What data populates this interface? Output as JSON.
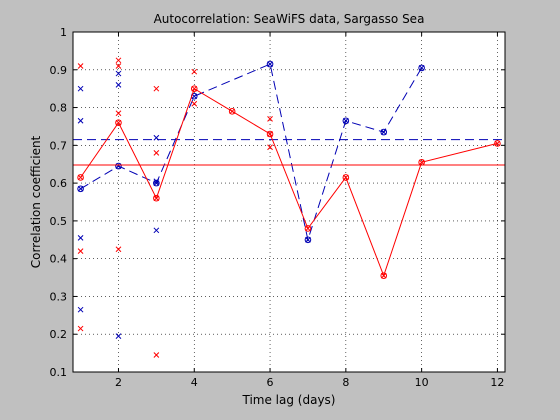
{
  "chart_data": {
    "type": "line",
    "title": "Autocorrelation: SeaWiFS data, Sargasso Sea",
    "xlabel": "Time lag (days)",
    "ylabel": "Correlation coefficient",
    "xlim": [
      0.8,
      12.2
    ],
    "ylim": [
      0.1,
      1.0
    ],
    "xticks": [
      2,
      4,
      6,
      8,
      10,
      12
    ],
    "yticks": [
      0.1,
      0.2,
      0.3,
      0.4,
      0.5,
      0.6,
      0.7,
      0.8,
      0.9,
      1
    ],
    "grid": true,
    "legend": "none",
    "series": [
      {
        "color": "#0000b4",
        "line_style": "dashed",
        "mean_value": 0.715,
        "x": [
          1,
          2,
          3,
          4,
          6,
          7,
          8,
          9,
          10
        ],
        "y": [
          0.585,
          0.645,
          0.6,
          0.83,
          0.915,
          0.45,
          0.765,
          0.735,
          0.905
        ],
        "scatter": {
          "x": [
            1,
            1,
            1,
            1,
            2,
            2,
            2,
            3,
            3,
            3
          ],
          "y": [
            0.85,
            0.765,
            0.455,
            0.265,
            0.89,
            0.86,
            0.195,
            0.72,
            0.605,
            0.475
          ]
        }
      },
      {
        "color": "#ff0000",
        "line_style": "solid",
        "mean_value": 0.648,
        "x": [
          1,
          2,
          3,
          4,
          5,
          6,
          7,
          8,
          9,
          10,
          12
        ],
        "y": [
          0.615,
          0.76,
          0.56,
          0.85,
          0.79,
          0.73,
          0.48,
          0.615,
          0.355,
          0.655,
          0.705
        ],
        "scatter": {
          "x": [
            1,
            1,
            1,
            2,
            2,
            2,
            2,
            3,
            3,
            3,
            4,
            4,
            6,
            6
          ],
          "y": [
            0.91,
            0.42,
            0.215,
            0.925,
            0.91,
            0.785,
            0.425,
            0.85,
            0.68,
            0.145,
            0.895,
            0.81,
            0.77,
            0.695
          ]
        }
      }
    ]
  }
}
